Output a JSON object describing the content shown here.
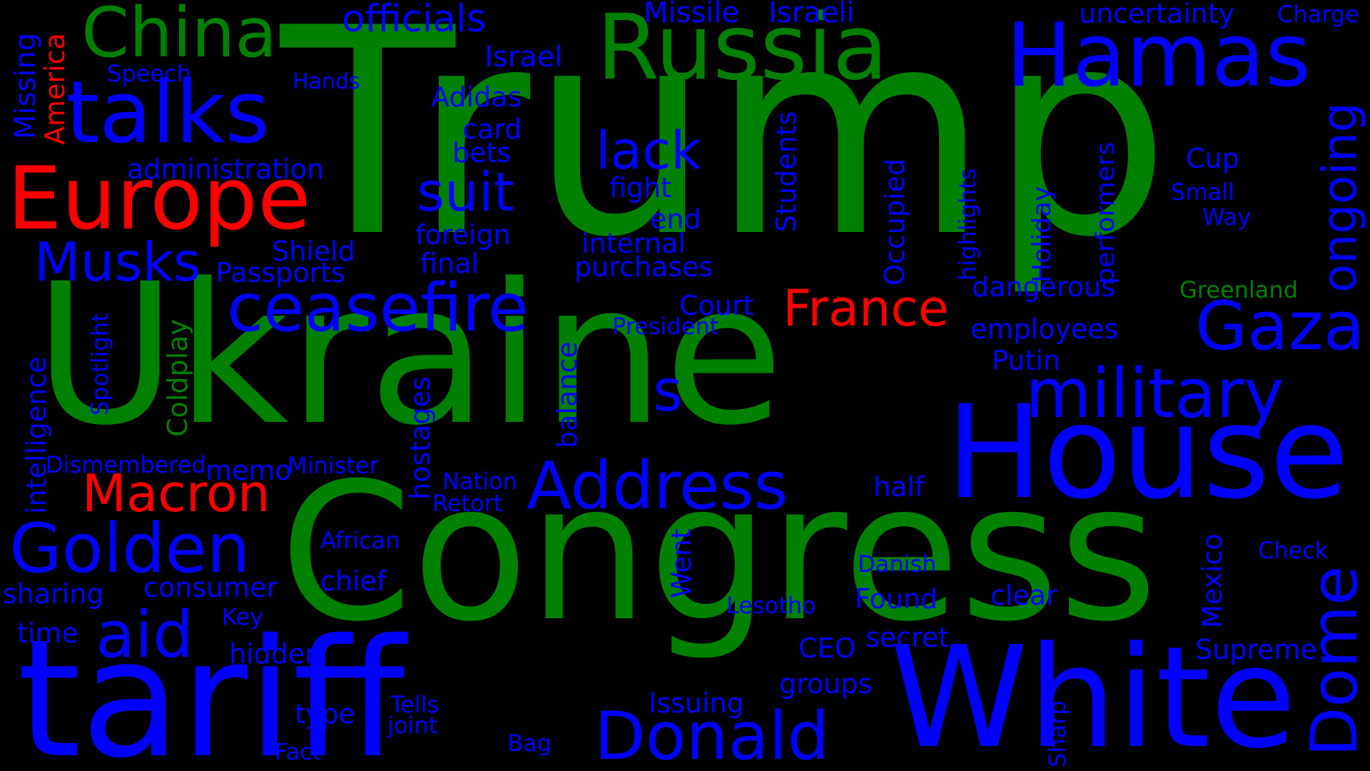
{
  "colors": {
    "background": "#000000",
    "green": "#008000",
    "blue": "#0000ff",
    "red": "#ff0000"
  },
  "words": {
    "trump": "Trump",
    "ukraine": "Ukraine",
    "congress": "Congress",
    "tariff": "tariff",
    "russia": "Russia",
    "hamas": "Hamas",
    "house": "House",
    "white": "White",
    "talks": "talks",
    "europe": "Europe",
    "china": "China",
    "ceasefire": "ceasefire",
    "gaza": "Gaza",
    "military": "military",
    "golden": "Golden",
    "dome": "Dome",
    "donald": "Donald",
    "address": "Address",
    "aid": "aid",
    "macron": "Macron",
    "musks": "Musks",
    "suit": "suit",
    "lack": "lack",
    "france": "France",
    "ongoing": "ongoing",
    "s": "s",
    "officials": "officials",
    "missile": "Missile",
    "israeli": "Israeli",
    "uncertainty": "uncertainty",
    "charge": "Charge",
    "israel": "Israel",
    "speech": "Speech",
    "hands": "Hands",
    "missing": "Missing",
    "america": "America",
    "adidas": "Adidas",
    "card": "card",
    "bets": "bets",
    "administration": "administration",
    "fight": "fight",
    "end": "end",
    "internal": "internal",
    "foreign": "foreign",
    "final": "final",
    "purchases": "purchases",
    "shield": "Shield",
    "passports": "Passports",
    "students": "Students",
    "occupied": "Occupied",
    "highlights": "highlights",
    "holiday": "Holiday",
    "performers": "performers",
    "cup": "Cup",
    "small": "Small",
    "way": "Way",
    "greenland": "Greenland",
    "dangerous": "dangerous",
    "court": "Court",
    "president": "President",
    "employees": "employees",
    "putin": "Putin",
    "intelligence": "intelligence",
    "spotlight": "Spotlight",
    "coldplay": "Coldplay",
    "balance": "balance",
    "hostages": "hostages",
    "dismembered": "Dismembered",
    "memo": "memo",
    "minister": "Minister",
    "nation": "Nation",
    "retort": "Retort",
    "half": "half",
    "sharing": "sharing",
    "consumer": "consumer",
    "african": "African",
    "chief": "chief",
    "danish": "Danish",
    "check": "Check",
    "went": "Went",
    "mexico": "Mexico",
    "time": "time",
    "key": "Key",
    "hidden": "hidden",
    "lesotho": "Lesotho",
    "found": "Found",
    "clear": "clear",
    "secret": "secret",
    "ceo": "CEO",
    "supreme": "Supreme",
    "groups": "groups",
    "issuing": "Issuing",
    "type": "type",
    "tells": "Tells",
    "joint": "joint",
    "fact": "Fact",
    "bag": "Bag",
    "sharp": "Sharp"
  }
}
